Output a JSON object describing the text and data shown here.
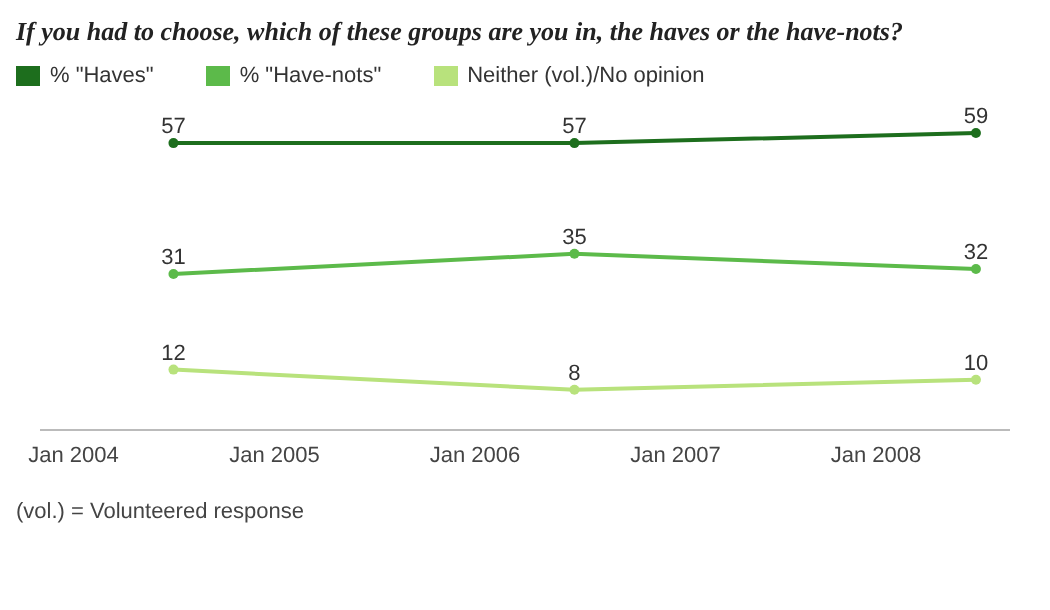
{
  "chart_data": {
    "type": "line",
    "title": "If you had to choose, which of these groups are you in, the haves or the have-nots?",
    "x": [
      "2004-07",
      "2006-07",
      "2008-07"
    ],
    "series": [
      {
        "name": "% \"Haves\"",
        "color": "#1d6e1d",
        "values": [
          57,
          57,
          59
        ]
      },
      {
        "name": "% \"Have-nots\"",
        "color": "#5cba4a",
        "values": [
          31,
          35,
          32
        ]
      },
      {
        "name": "Neither (vol.)/No opinion",
        "color": "#b8e27c",
        "values": [
          12,
          8,
          10
        ]
      }
    ],
    "xlim": [
      "2003-11",
      "2008-09"
    ],
    "xticks": [
      {
        "value": "2004-01",
        "label": "Jan 2004"
      },
      {
        "value": "2005-01",
        "label": "Jan 2005"
      },
      {
        "value": "2006-01",
        "label": "Jan 2006"
      },
      {
        "value": "2007-01",
        "label": "Jan 2007"
      },
      {
        "value": "2008-01",
        "label": "Jan 2008"
      }
    ],
    "data_labels": true,
    "legend": "top left",
    "marker": "circle",
    "line_style": "solid",
    "annotations": [
      "(vol.) = Volunteered response"
    ]
  }
}
